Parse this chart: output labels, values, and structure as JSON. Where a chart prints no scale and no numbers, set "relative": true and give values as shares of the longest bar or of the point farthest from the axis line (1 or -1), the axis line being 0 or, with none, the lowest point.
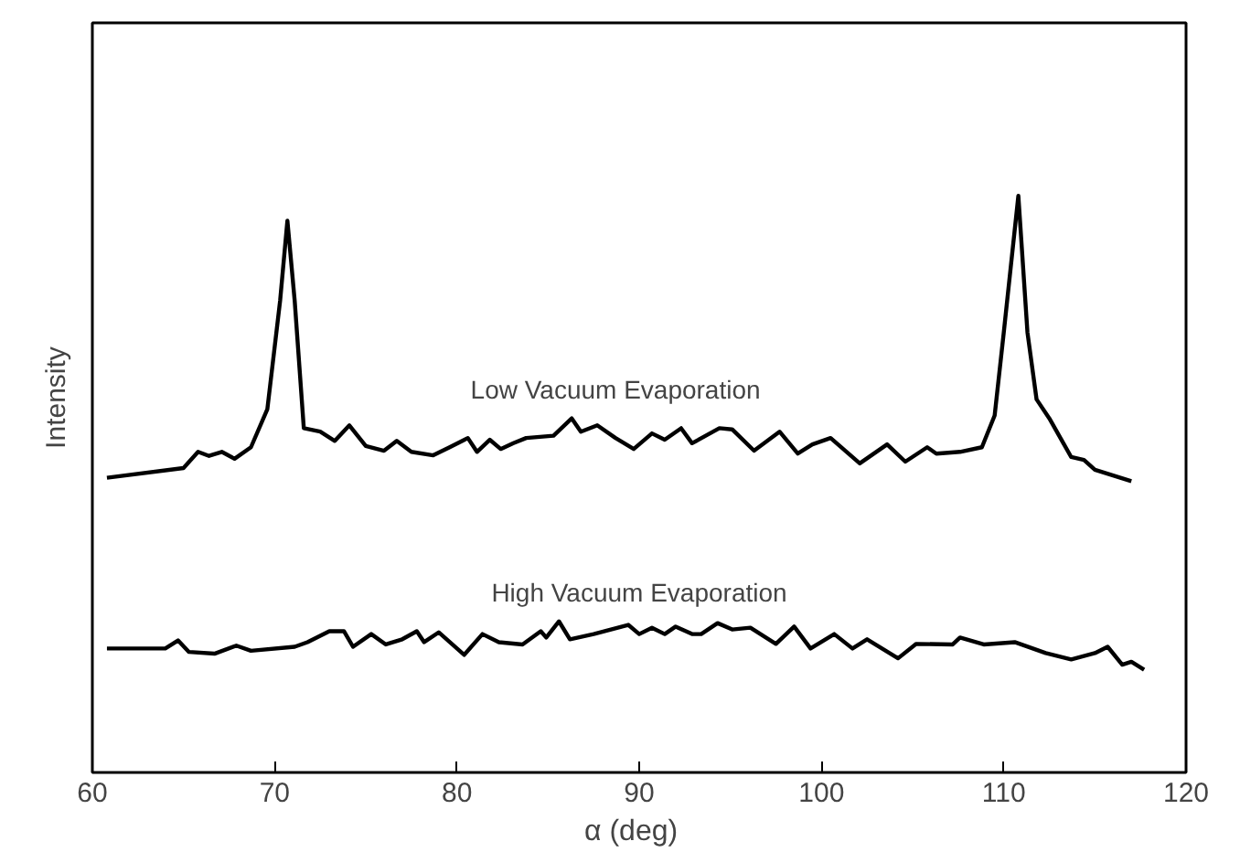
{
  "chart_data": {
    "type": "line",
    "relative": true,
    "xlabel": "α   (deg)",
    "ylabel": "Intensity",
    "xlim": [
      60,
      120
    ],
    "xticks": [
      60,
      70,
      80,
      90,
      100,
      110,
      120
    ],
    "grid": false,
    "legend": false,
    "marker": "none",
    "line_style": "solid",
    "series": [
      {
        "name": "Low Vacuum Evaporation",
        "color": "#000000",
        "x": [
          60.8,
          65.0,
          65.8,
          66.4,
          67.1,
          67.8,
          68.7,
          69.6,
          70.3,
          70.7,
          71.1,
          71.6,
          72.5,
          73.3,
          74.1,
          75.0,
          76.0,
          76.7,
          77.5,
          78.7,
          79.6,
          80.6,
          81.1,
          81.8,
          82.4,
          83.1,
          83.8,
          85.3,
          86.3,
          86.8,
          87.7,
          88.7,
          89.7,
          90.7,
          91.4,
          92.3,
          92.9,
          94.4,
          95.1,
          96.3,
          97.7,
          98.7,
          99.5,
          100.5,
          102.1,
          103.6,
          104.6,
          105.8,
          106.3,
          107.6,
          108.8,
          109.5,
          110.0,
          110.8,
          111.3,
          111.8,
          112.5,
          113.2,
          113.7,
          114.4,
          115.0,
          117.0
        ],
        "values": [
          0.511,
          0.528,
          0.556,
          0.549,
          0.556,
          0.544,
          0.564,
          0.63,
          0.818,
          0.957,
          0.818,
          0.597,
          0.591,
          0.575,
          0.602,
          0.566,
          0.558,
          0.575,
          0.556,
          0.55,
          0.564,
          0.58,
          0.556,
          0.577,
          0.561,
          0.571,
          0.58,
          0.584,
          0.614,
          0.591,
          0.602,
          0.58,
          0.561,
          0.588,
          0.577,
          0.597,
          0.571,
          0.597,
          0.595,
          0.558,
          0.591,
          0.553,
          0.569,
          0.58,
          0.536,
          0.569,
          0.539,
          0.564,
          0.553,
          0.556,
          0.564,
          0.619,
          0.763,
          1.0,
          0.763,
          0.647,
          0.614,
          0.575,
          0.547,
          0.542,
          0.525,
          0.505
        ]
      },
      {
        "name": "High Vacuum Evaporation",
        "color": "#000000",
        "x": [
          60.8,
          64.0,
          64.7,
          65.3,
          66.7,
          67.9,
          68.7,
          71.1,
          71.8,
          73.0,
          73.8,
          74.3,
          75.3,
          76.1,
          77.0,
          77.8,
          78.2,
          79.0,
          80.4,
          81.4,
          82.3,
          83.6,
          84.6,
          84.9,
          85.6,
          86.2,
          87.5,
          89.4,
          90.0,
          90.7,
          91.4,
          92.0,
          92.9,
          93.4,
          94.3,
          95.1,
          96.1,
          97.5,
          98.5,
          99.4,
          100.7,
          101.7,
          102.5,
          104.2,
          105.2,
          107.2,
          107.6,
          108.9,
          110.6,
          112.3,
          113.7,
          115.0,
          115.7,
          116.5,
          117.0,
          117.7
        ],
        "values": [
          0.215,
          0.215,
          0.229,
          0.209,
          0.206,
          0.22,
          0.211,
          0.218,
          0.226,
          0.245,
          0.245,
          0.218,
          0.24,
          0.222,
          0.231,
          0.245,
          0.226,
          0.243,
          0.204,
          0.24,
          0.226,
          0.222,
          0.245,
          0.234,
          0.262,
          0.231,
          0.24,
          0.256,
          0.24,
          0.251,
          0.24,
          0.253,
          0.24,
          0.24,
          0.259,
          0.248,
          0.251,
          0.223,
          0.253,
          0.215,
          0.24,
          0.215,
          0.231,
          0.198,
          0.223,
          0.222,
          0.234,
          0.222,
          0.226,
          0.207,
          0.196,
          0.207,
          0.218,
          0.187,
          0.192,
          0.178
        ]
      }
    ]
  }
}
